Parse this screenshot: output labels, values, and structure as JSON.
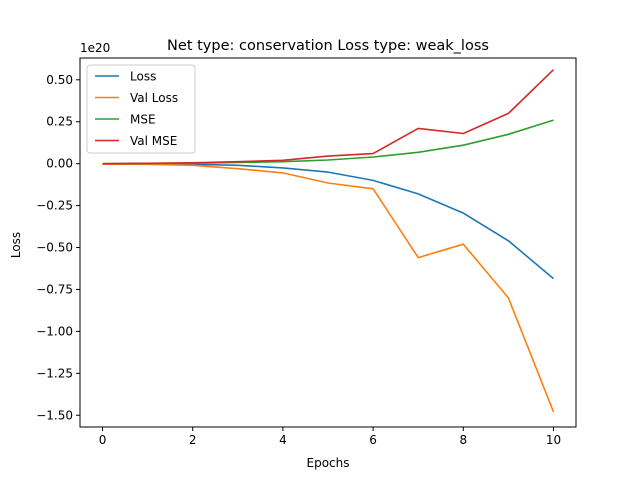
{
  "chart_data": {
    "type": "line",
    "title": "Net type: conservation Loss type: weak_loss",
    "xlabel": "Epochs",
    "ylabel": "Loss",
    "offset_label": "1e20",
    "x": [
      0,
      1,
      2,
      3,
      4,
      5,
      6,
      7,
      8,
      9,
      10
    ],
    "xlim": [
      -0.5,
      10.5
    ],
    "ylim": [
      -1.57,
      0.63
    ],
    "xticks": [
      0,
      2,
      4,
      6,
      8,
      10
    ],
    "xtick_labels": [
      "0",
      "2",
      "4",
      "6",
      "8",
      "10"
    ],
    "yticks": [
      0.5,
      0.25,
      0.0,
      -0.25,
      -0.5,
      -0.75,
      -1.0,
      -1.25,
      -1.5
    ],
    "ytick_labels": [
      "0.50",
      "0.25",
      "0.00",
      "−0.25",
      "−0.50",
      "−0.75",
      "−1.00",
      "−1.25",
      "−1.50"
    ],
    "grid": false,
    "legend_position": "top-left",
    "series": [
      {
        "name": "Loss",
        "color": "#1f77b4",
        "values": [
          -0.002,
          -0.003,
          -0.004,
          -0.01,
          -0.025,
          -0.05,
          -0.1,
          -0.18,
          -0.295,
          -0.46,
          -0.685
        ]
      },
      {
        "name": "Val Loss",
        "color": "#ff7f0e",
        "values": [
          -0.003,
          -0.004,
          -0.01,
          -0.03,
          -0.055,
          -0.115,
          -0.15,
          -0.56,
          -0.48,
          -0.8,
          -1.48
        ]
      },
      {
        "name": "MSE",
        "color": "#2ca02c",
        "values": [
          0.0,
          0.0015,
          0.003,
          0.007,
          0.012,
          0.022,
          0.04,
          0.068,
          0.11,
          0.175,
          0.26
        ]
      },
      {
        "name": "Val MSE",
        "color": "#d62728",
        "values": [
          0.0,
          0.002,
          0.005,
          0.012,
          0.02,
          0.045,
          0.06,
          0.21,
          0.18,
          0.3,
          0.56
        ]
      }
    ]
  }
}
